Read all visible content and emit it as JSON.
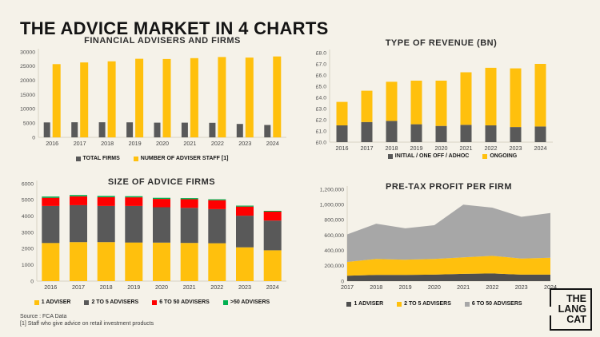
{
  "page": {
    "title": "THE ADVICE MARKET IN 4 CHARTS",
    "source_line1": "Source : FCA Data",
    "source_line2": "[1] Staff who give advice on retail investment products",
    "logo_lines": [
      "THE",
      "LANG",
      "CAT"
    ]
  },
  "colors": {
    "background": "#F5F2E9",
    "ink": "#141414",
    "yellow": "#FFC00D",
    "dark_gray": "#595959",
    "red": "#FE0000",
    "green": "#00B050",
    "light_gray": "#A7A7A7",
    "area_dark": "#4F4F4F",
    "axis": "#D8D3C2"
  },
  "chart_data": [
    {
      "type": "bar",
      "stacked": false,
      "title": "FINANCIAL ADVISERS AND FIRMS",
      "xlabel": "",
      "ylabel": "",
      "grid": false,
      "legend_position": "bottom",
      "categories": [
        "2016",
        "2017",
        "2018",
        "2019",
        "2020",
        "2021",
        "2022",
        "2023",
        "2024"
      ],
      "series": [
        {
          "name": "TOTAL FIRMS",
          "color": "#595959",
          "values": [
            5250,
            5300,
            5300,
            5280,
            5150,
            5150,
            5100,
            4700,
            4350
          ]
        },
        {
          "name": "NUMBER OF ADVISER STAFF [1]",
          "color": "#FFC00D",
          "values": [
            25700,
            26300,
            26700,
            27600,
            27500,
            27800,
            28200,
            28000,
            28400
          ]
        }
      ],
      "ylim": [
        0,
        30000
      ],
      "yticks": [
        {
          "v": 0,
          "label": "0"
        },
        {
          "v": 5000,
          "label": "5000"
        },
        {
          "v": 10000,
          "label": "10000"
        },
        {
          "v": 15000,
          "label": "15000"
        },
        {
          "v": 20000,
          "label": "20000"
        },
        {
          "v": 25000,
          "label": "25000"
        },
        {
          "v": 30000,
          "label": "30000"
        }
      ]
    },
    {
      "type": "bar",
      "stacked": true,
      "title": "TYPE OF REVENUE (BN)",
      "xlabel": "",
      "ylabel": "",
      "grid": false,
      "legend_position": "bottom",
      "categories": [
        "2016",
        "2017",
        "2018",
        "2019",
        "2020",
        "2021",
        "2022",
        "2023",
        "2024"
      ],
      "series": [
        {
          "name": "INITIAL / ONE OFF / ADHOC",
          "color": "#595959",
          "values": [
            1.5,
            1.8,
            1.9,
            1.6,
            1.45,
            1.55,
            1.5,
            1.35,
            1.4
          ]
        },
        {
          "name": "ONGOING",
          "color": "#FFC00D",
          "values": [
            2.1,
            2.8,
            3.5,
            3.9,
            4.05,
            4.7,
            5.15,
            5.25,
            5.6
          ]
        }
      ],
      "ylim": [
        0,
        8
      ],
      "yticks": [
        {
          "v": 0,
          "label": "£0.0"
        },
        {
          "v": 1,
          "label": "£1.0"
        },
        {
          "v": 2,
          "label": "£2.0"
        },
        {
          "v": 3,
          "label": "£3.0"
        },
        {
          "v": 4,
          "label": "£4.0"
        },
        {
          "v": 5,
          "label": "£5.0"
        },
        {
          "v": 6,
          "label": "£6.0"
        },
        {
          "v": 7,
          "label": "£7.0"
        },
        {
          "v": 8,
          "label": "£8.0"
        }
      ]
    },
    {
      "type": "bar",
      "stacked": true,
      "title": "SIZE OF ADVICE FIRMS",
      "xlabel": "",
      "ylabel": "",
      "grid": false,
      "legend_position": "bottom",
      "categories": [
        "2016",
        "2017",
        "2018",
        "2019",
        "2020",
        "2021",
        "2022",
        "2023",
        "2024"
      ],
      "series": [
        {
          "name": "1 ADVISER",
          "color": "#FFC00D",
          "values": [
            2350,
            2400,
            2400,
            2380,
            2370,
            2350,
            2330,
            2080,
            1900
          ]
        },
        {
          "name": "2 TO 5 ADVISERS",
          "color": "#595959",
          "values": [
            2280,
            2280,
            2230,
            2250,
            2180,
            2160,
            2100,
            1950,
            1830
          ]
        },
        {
          "name": "6 TO 50 ADVISERS",
          "color": "#FE0000",
          "values": [
            500,
            540,
            540,
            530,
            510,
            530,
            550,
            560,
            550
          ]
        },
        {
          "name": ">50 ADVISERS",
          "color": "#00B050",
          "values": [
            80,
            80,
            80,
            70,
            70,
            70,
            60,
            60,
            50
          ]
        }
      ],
      "ylim": [
        0,
        6000
      ],
      "yticks": [
        {
          "v": 0,
          "label": "0"
        },
        {
          "v": 1000,
          "label": "1000"
        },
        {
          "v": 2000,
          "label": "2000"
        },
        {
          "v": 3000,
          "label": "3000"
        },
        {
          "v": 4000,
          "label": "4000"
        },
        {
          "v": 5000,
          "label": "5000"
        },
        {
          "v": 6000,
          "label": "6000"
        }
      ]
    },
    {
      "type": "area",
      "stacked": true,
      "title": "PRE-TAX PROFIT PER FIRM",
      "xlabel": "",
      "ylabel": "",
      "grid": false,
      "legend_position": "bottom",
      "categories": [
        "2017",
        "2018",
        "2019",
        "2020",
        "2021",
        "2022",
        "2023",
        "2024"
      ],
      "series": [
        {
          "name": "1 ADVISER",
          "color": "#4F4F4F",
          "values": [
            70000,
            80000,
            80000,
            85000,
            95000,
            100000,
            85000,
            85000
          ]
        },
        {
          "name": "2 TO 5 ADVISERS",
          "color": "#FFC00D",
          "values": [
            180000,
            210000,
            200000,
            205000,
            215000,
            230000,
            210000,
            220000
          ]
        },
        {
          "name": "6 TO 50 ADVISERS",
          "color": "#A7A7A7",
          "values": [
            360000,
            460000,
            410000,
            440000,
            690000,
            630000,
            545000,
            585000
          ]
        }
      ],
      "ylim": [
        0,
        1200000
      ],
      "yticks": [
        {
          "v": 0,
          "label": "0"
        },
        {
          "v": 200000,
          "label": "200,000"
        },
        {
          "v": 400000,
          "label": "400,000"
        },
        {
          "v": 600000,
          "label": "600,000"
        },
        {
          "v": 800000,
          "label": "800,000"
        },
        {
          "v": 1000000,
          "label": "1,000,000"
        },
        {
          "v": 1200000,
          "label": "1,200,000"
        }
      ]
    }
  ]
}
